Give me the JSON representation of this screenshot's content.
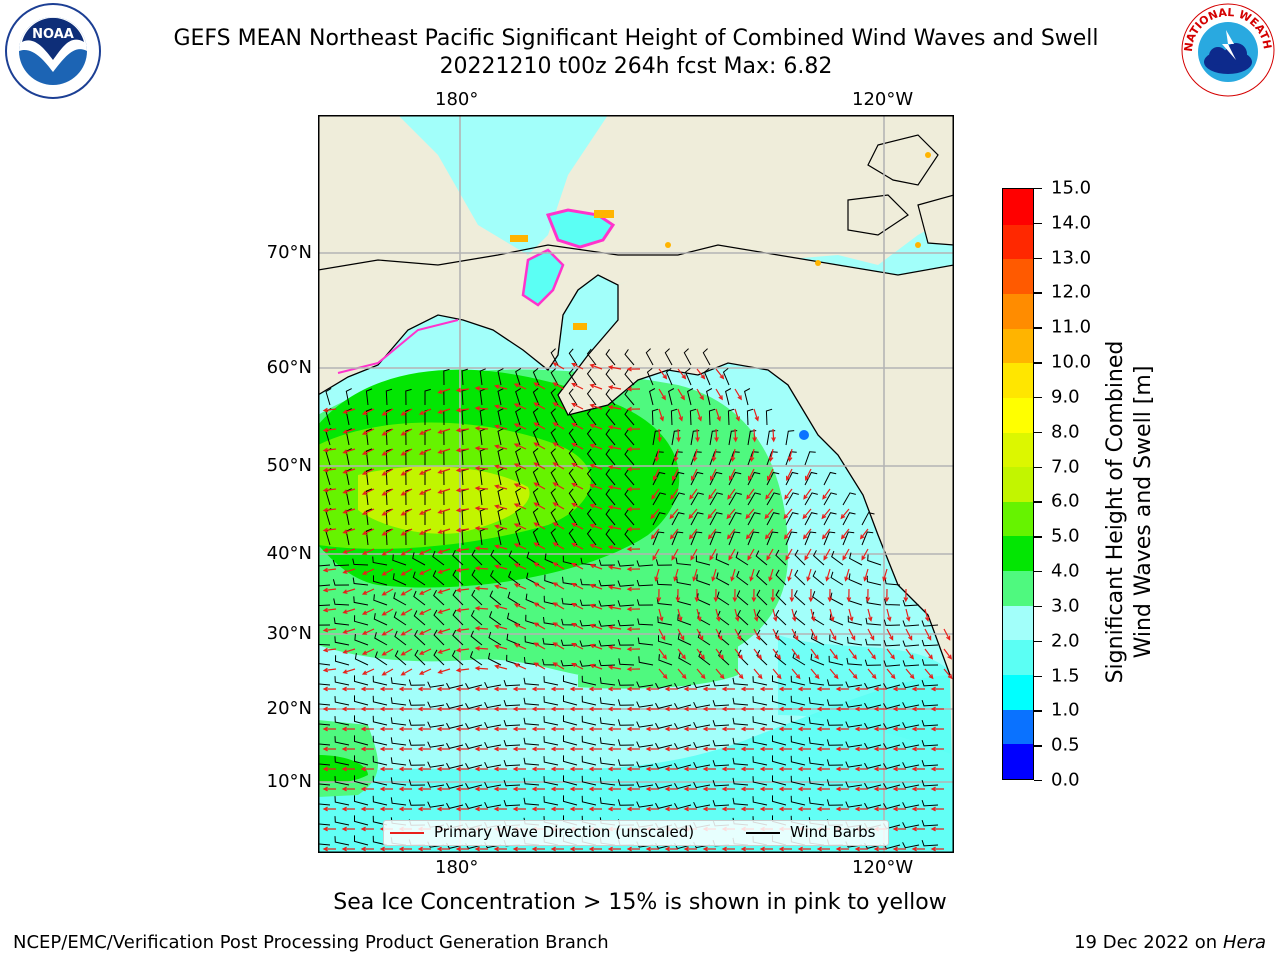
{
  "header": {
    "title_line1": "GEFS MEAN Northeast Pacific Significant Height of Combined Wind Waves and Swell",
    "title_line2": "20221210 t00z 264h fcst   Max: 6.82"
  },
  "logos": {
    "left": {
      "icon": "noaa-logo",
      "text": "NOAA"
    },
    "right": {
      "icon": "nws-logo",
      "text": "NATIONAL WEATHER SERVICE"
    }
  },
  "map": {
    "lon_labels_top": [
      "180°",
      "120°W"
    ],
    "lon_labels_bottom": [
      "180°",
      "120°W"
    ],
    "lat_labels": [
      "70°N",
      "60°N",
      "50°N",
      "40°N",
      "30°N",
      "20°N",
      "10°N"
    ],
    "land_color": "#efedda",
    "grid_color": "#b4b4b4"
  },
  "legend": {
    "wave_direction": "Primary Wave Direction (unscaled)",
    "wind_barbs": "Wind Barbs",
    "wave_direction_color": "#e8201c",
    "wind_barbs_color": "#000000"
  },
  "colorbar": {
    "label_line1": "Significant Height of Combined",
    "label_line2": "Wind Waves and Swell [m]",
    "ticks": [
      "0.0",
      "0.5",
      "1.0",
      "1.5",
      "2.0",
      "3.0",
      "4.0",
      "5.0",
      "6.0",
      "7.0",
      "8.0",
      "9.0",
      "10.0",
      "11.0",
      "12.0",
      "13.0",
      "14.0",
      "15.0"
    ],
    "colors": [
      "#0000ff",
      "#0a72ff",
      "#00ffff",
      "#5bfff4",
      "#a2fffa",
      "#4ff97f",
      "#03e603",
      "#66f300",
      "#c2f500",
      "#dcf700",
      "#ffff00",
      "#ffe600",
      "#ffb400",
      "#ff8c00",
      "#ff5a00",
      "#ff2800",
      "#ff0000"
    ]
  },
  "footer": {
    "sea_ice_note": "Sea Ice Concentration > 15% is shown in pink to yellow",
    "credit": "NCEP/EMC/Verification Post Processing Product Generation Branch",
    "date": "19 Dec 2022 on",
    "host": "Hera"
  }
}
